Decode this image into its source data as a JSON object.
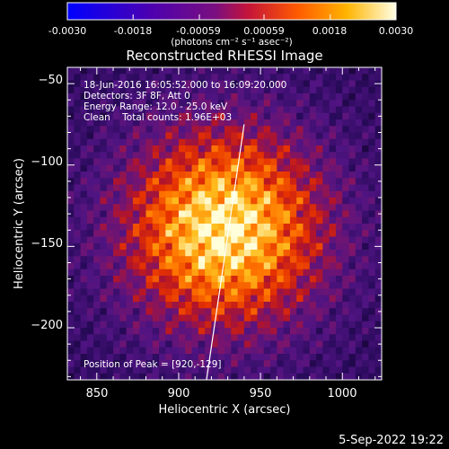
{
  "colorbar": {
    "ticks": [
      "-0.0030",
      "-0.0018",
      "-0.00059",
      "0.00059",
      "0.0018",
      "0.0030"
    ],
    "unit_label": "(photons cm⁻² s⁻¹ asec⁻²)",
    "range": [
      -0.003,
      0.003
    ]
  },
  "chart_data": {
    "type": "heatmap",
    "title": "Reconstructed RHESSI Image",
    "xlabel": "Heliocentric X (arcsec)",
    "ylabel": "Heliocentric Y (arcsec)",
    "xlim": [
      832,
      1024
    ],
    "ylim": [
      -232,
      -40
    ],
    "x_ticks": [
      850,
      900,
      950,
      1000
    ],
    "y_ticks": [
      -50,
      -100,
      -150,
      -200
    ],
    "x_tick_labels": [
      "850",
      "900",
      "950",
      "1000"
    ],
    "y_tick_labels": [
      "−50",
      "−100",
      "−150",
      "−200"
    ],
    "annotations": [
      "18-Jun-2016 16:05:52.000 to 16:09:20.000",
      "Detectors: 3F 8F, Att 0",
      "Energy Range: 12.0 - 25.0 keV",
      "Clean    Total counts: 1.96E+03"
    ],
    "peak_label": "Position of Peak = [920,-129]",
    "peak": [
      920,
      -129
    ],
    "limb_line": [
      [
        917,
        -232
      ],
      [
        940,
        -75
      ]
    ],
    "colormap": "IDL color table 5 (black-blue-purple-red-orange-yellow-white)"
  },
  "footer": {
    "date": "5-Sep-2022 19:22"
  }
}
